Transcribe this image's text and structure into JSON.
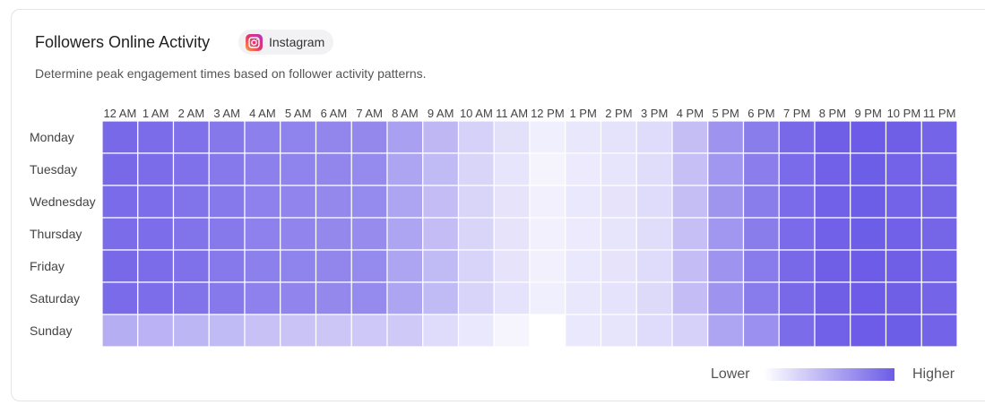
{
  "header": {
    "title": "Followers Online Activity",
    "platform_label": "Instagram",
    "platform_icon": "instagram-icon",
    "subtitle": "Determine peak engagement times based on follower activity patterns."
  },
  "legend": {
    "low": "Lower",
    "high": "Higher",
    "low_color": "#ffffff",
    "high_color": "#6c5ce7"
  },
  "chart_data": {
    "type": "heatmap",
    "title": "Followers Online Activity",
    "x": [
      "12 AM",
      "1 AM",
      "2 AM",
      "3 AM",
      "4 AM",
      "5 AM",
      "6 AM",
      "7 AM",
      "8 AM",
      "9 AM",
      "10 AM",
      "11 AM",
      "12 PM",
      "1 PM",
      "2 PM",
      "3 PM",
      "4 PM",
      "5 PM",
      "6 PM",
      "7 PM",
      "8 PM",
      "9 PM",
      "10 PM",
      "11 PM"
    ],
    "y": [
      "Monday",
      "Tuesday",
      "Wednesday",
      "Thursday",
      "Friday",
      "Saturday",
      "Sunday"
    ],
    "scale": "relative activity 0 (lower) to 1 (higher)",
    "values": [
      [
        0.92,
        0.9,
        0.87,
        0.83,
        0.78,
        0.76,
        0.74,
        0.73,
        0.58,
        0.44,
        0.28,
        0.19,
        0.1,
        0.15,
        0.18,
        0.22,
        0.4,
        0.66,
        0.8,
        0.92,
        0.98,
        1.0,
        0.98,
        0.95
      ],
      [
        0.92,
        0.9,
        0.87,
        0.82,
        0.78,
        0.76,
        0.74,
        0.72,
        0.56,
        0.42,
        0.26,
        0.16,
        0.07,
        0.13,
        0.16,
        0.21,
        0.39,
        0.64,
        0.79,
        0.91,
        0.97,
        0.99,
        0.96,
        0.93
      ],
      [
        0.91,
        0.89,
        0.86,
        0.82,
        0.77,
        0.75,
        0.73,
        0.72,
        0.55,
        0.41,
        0.26,
        0.17,
        0.09,
        0.14,
        0.17,
        0.22,
        0.4,
        0.65,
        0.8,
        0.91,
        0.97,
        0.99,
        0.96,
        0.94
      ],
      [
        0.9,
        0.89,
        0.86,
        0.82,
        0.77,
        0.75,
        0.73,
        0.71,
        0.55,
        0.41,
        0.26,
        0.17,
        0.09,
        0.13,
        0.16,
        0.21,
        0.39,
        0.64,
        0.8,
        0.91,
        0.97,
        0.99,
        0.97,
        0.94
      ],
      [
        0.92,
        0.9,
        0.87,
        0.82,
        0.78,
        0.76,
        0.74,
        0.72,
        0.56,
        0.42,
        0.27,
        0.17,
        0.09,
        0.14,
        0.17,
        0.22,
        0.41,
        0.66,
        0.81,
        0.92,
        0.98,
        1.0,
        0.98,
        0.95
      ],
      [
        0.91,
        0.89,
        0.86,
        0.82,
        0.77,
        0.75,
        0.73,
        0.72,
        0.56,
        0.42,
        0.27,
        0.18,
        0.1,
        0.15,
        0.18,
        0.23,
        0.41,
        0.66,
        0.81,
        0.92,
        0.98,
        1.0,
        0.98,
        0.95
      ],
      [
        0.5,
        0.47,
        0.45,
        0.42,
        0.38,
        0.36,
        0.35,
        0.34,
        0.33,
        0.22,
        0.14,
        0.06,
        0.0,
        0.14,
        0.16,
        0.22,
        0.28,
        0.55,
        0.68,
        0.9,
        0.97,
        1.0,
        0.99,
        0.96
      ]
    ]
  }
}
